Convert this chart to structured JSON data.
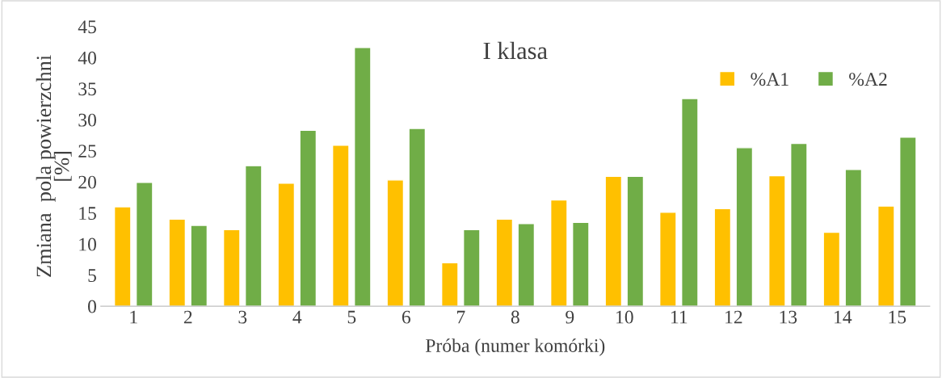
{
  "chart_data": {
    "type": "bar",
    "title": "I klasa",
    "xlabel": "Próba (numer komórki)",
    "ylabel": "Zmiana  pola powierzchni\n[%]",
    "categories": [
      "1",
      "2",
      "3",
      "4",
      "5",
      "6",
      "7",
      "8",
      "9",
      "10",
      "11",
      "12",
      "13",
      "14",
      "15"
    ],
    "series": [
      {
        "name": "%A1",
        "color": "#ffc000",
        "values": [
          16.0,
          14.0,
          12.3,
          19.8,
          25.9,
          20.3,
          7.0,
          14.0,
          17.1,
          20.9,
          15.1,
          15.7,
          21.0,
          11.9,
          16.1
        ]
      },
      {
        "name": "%A2",
        "color": "#70ad47",
        "values": [
          19.9,
          13.0,
          22.6,
          28.3,
          41.6,
          28.6,
          12.3,
          13.3,
          13.5,
          20.9,
          33.4,
          25.5,
          26.2,
          22.0,
          27.2
        ]
      }
    ],
    "ylim": [
      0,
      45
    ],
    "yticks": [
      0,
      5,
      10,
      15,
      20,
      25,
      30,
      35,
      40,
      45
    ],
    "grid": false,
    "legend": "top right"
  }
}
